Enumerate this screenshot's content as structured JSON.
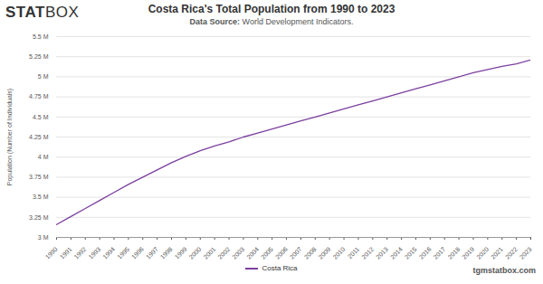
{
  "chart_data": {
    "type": "line",
    "title": "Costa Rica's Total Population from 1990 to 2023",
    "subtitle": "Data Source: World Development Indicators.",
    "logo": "STATBOX",
    "caption": "tgmstatbox.com",
    "y_label": "Population (Number of Individuals)",
    "x": [
      1990,
      1991,
      1992,
      1993,
      1994,
      1995,
      1996,
      1997,
      1998,
      1999,
      2000,
      2001,
      2002,
      2003,
      2004,
      2005,
      2006,
      2007,
      2008,
      2009,
      2010,
      2011,
      2012,
      2013,
      2014,
      2015,
      2016,
      2017,
      2018,
      2019,
      2020,
      2021,
      2022,
      2023
    ],
    "series": [
      {
        "name": "Costa Rica",
        "color": "#7b3f9e",
        "values": [
          3160000,
          3260000,
          3360000,
          3460000,
          3560000,
          3660000,
          3750000,
          3840000,
          3930000,
          4010000,
          4080000,
          4140000,
          4190000,
          4250000,
          4300000,
          4350000,
          4400000,
          4450000,
          4500000,
          4550000,
          4600000,
          4650000,
          4700000,
          4750000,
          4800000,
          4850000,
          4900000,
          4950000,
          5000000,
          5050000,
          5090000,
          5130000,
          5160000,
          5210000
        ]
      }
    ],
    "xlim": [
      1990,
      2023
    ],
    "xticks": [
      1990,
      1991,
      1992,
      1993,
      1994,
      1995,
      1996,
      1997,
      1998,
      1999,
      2000,
      2001,
      2002,
      2003,
      2004,
      2005,
      2006,
      2007,
      2008,
      2009,
      2010,
      2011,
      2012,
      2013,
      2014,
      2015,
      2016,
      2017,
      2018,
      2019,
      2020,
      2021,
      2022,
      2023
    ],
    "ylim": [
      3000000,
      5500000
    ],
    "yticks": [
      {
        "value": 3000000,
        "label": "3 M"
      },
      {
        "value": 3250000,
        "label": "3.25 M"
      },
      {
        "value": 3500000,
        "label": "3.5 M"
      },
      {
        "value": 3750000,
        "label": "3.75 M"
      },
      {
        "value": 4000000,
        "label": "4 M"
      },
      {
        "value": 4250000,
        "label": "4.25 M"
      },
      {
        "value": 4500000,
        "label": "4.5 M"
      },
      {
        "value": 4750000,
        "label": "4.75 M"
      },
      {
        "value": 5000000,
        "label": "5 M"
      },
      {
        "value": 5250000,
        "label": "5.25 M"
      },
      {
        "value": 5500000,
        "label": "5.5 M"
      }
    ],
    "grid": true,
    "legend": "bottom"
  }
}
